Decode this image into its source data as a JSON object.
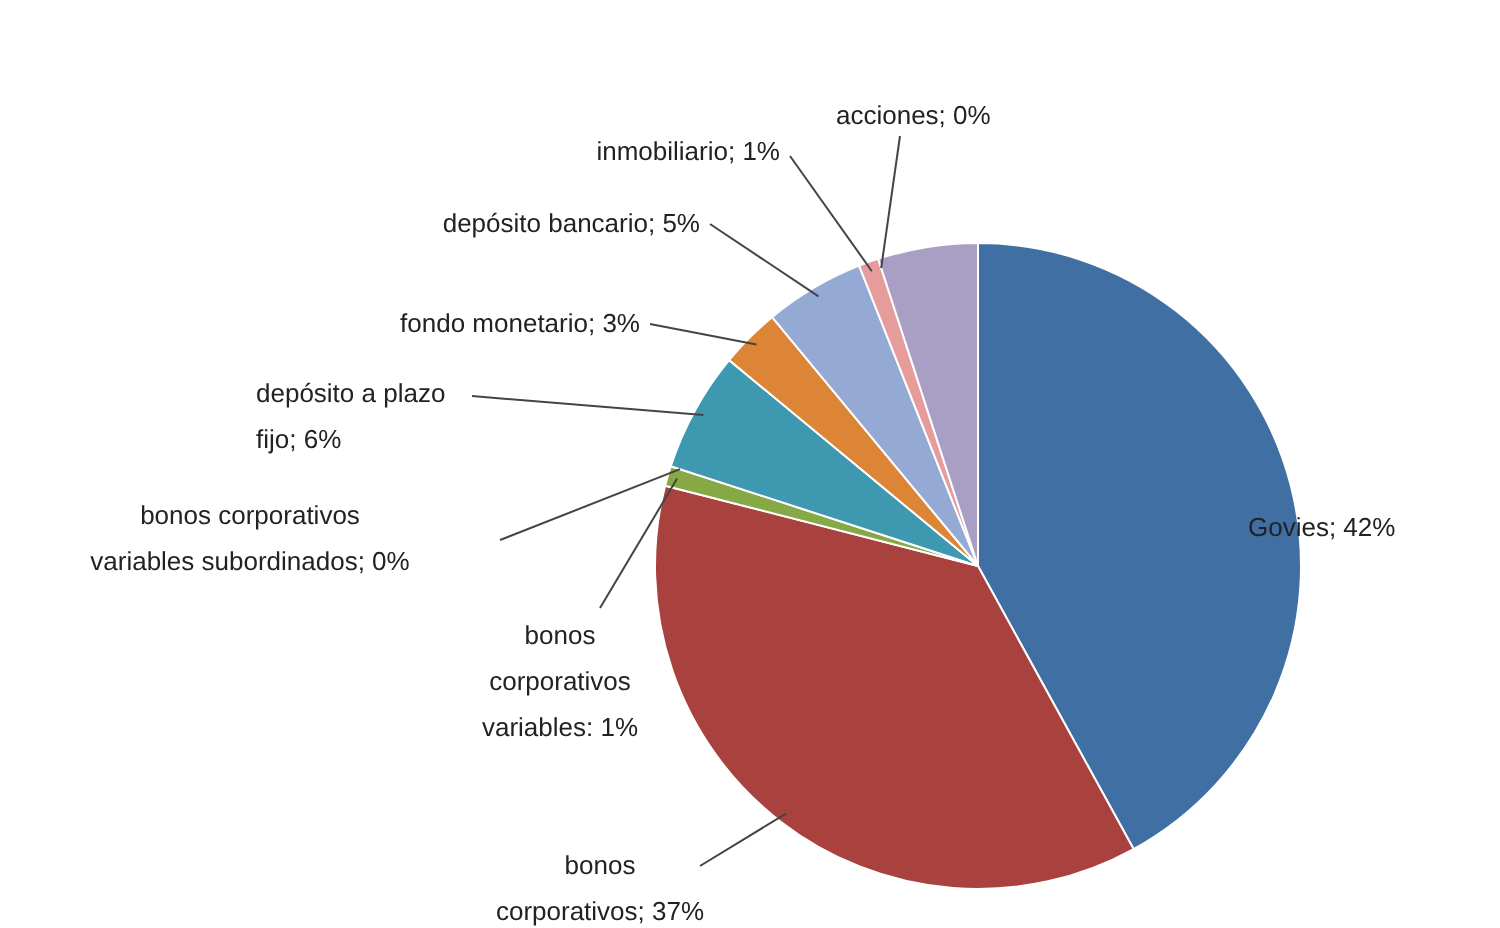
{
  "chart_data": {
    "type": "pie",
    "categories": [
      "Govies",
      "bonos corporativos",
      "bonos corporativos variables",
      "bonos corporativos variables subordinados",
      "depósito a plazo fijo",
      "fondo monetario",
      "depósito bancario",
      "inmobiliario",
      "acciones",
      null
    ],
    "values": [
      42,
      37,
      1,
      0,
      6,
      3,
      5,
      1,
      0,
      5
    ],
    "colors": [
      "#3f6fa3",
      "#a9423f",
      "#86a845",
      "#6e4f96",
      "#3e98b0",
      "#dd8536",
      "#94a9d3",
      "#e59c9a",
      "#c9b6d8",
      "#a99ec4"
    ],
    "value_labels": [
      "; 42%",
      "; 37%",
      ": 1%",
      "; 0%",
      "; 6%",
      "; 3%",
      "; 5%",
      "; 1%",
      "; 0%",
      null
    ],
    "legend": false
  }
}
